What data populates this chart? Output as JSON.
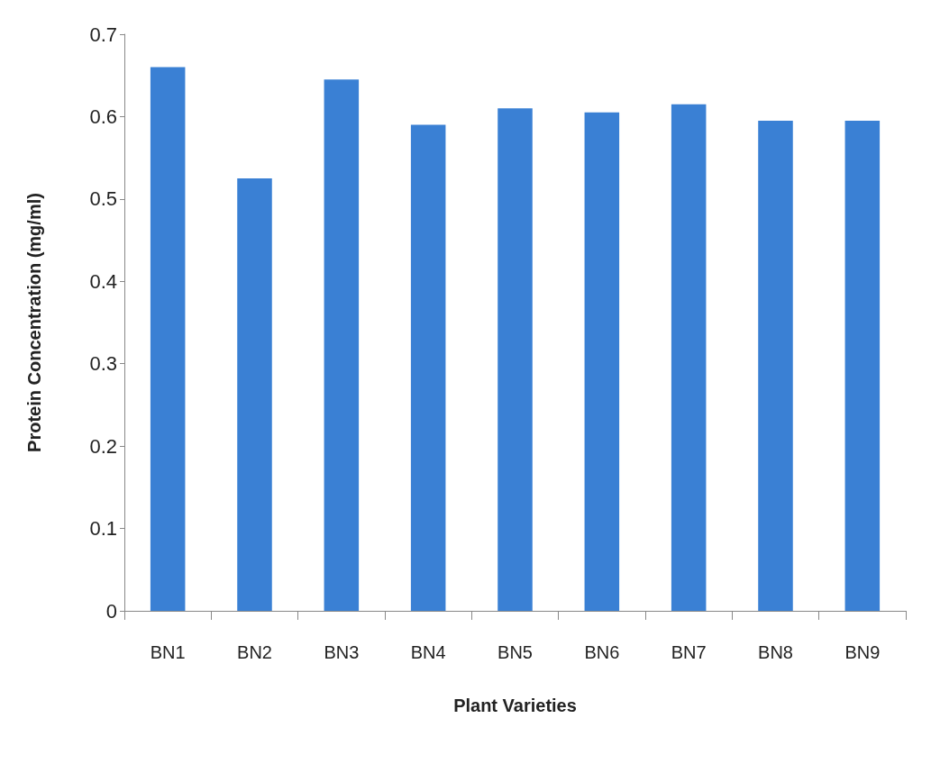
{
  "chart_data": {
    "type": "bar",
    "xlabel": "Plant Varieties",
    "ylabel": "Protein Concentration (mg/ml)",
    "categories": [
      "BN1",
      "BN2",
      "BN3",
      "BN4",
      "BN5",
      "BN6",
      "BN7",
      "BN8",
      "BN9"
    ],
    "values": [
      0.66,
      0.525,
      0.645,
      0.59,
      0.61,
      0.605,
      0.615,
      0.595,
      0.595
    ],
    "color": "#3a80d4",
    "ylim": [
      0,
      0.7
    ],
    "yticks": [
      0,
      0.1,
      0.2,
      0.3,
      0.4,
      0.5,
      0.6,
      0.7
    ],
    "grid": false
  }
}
